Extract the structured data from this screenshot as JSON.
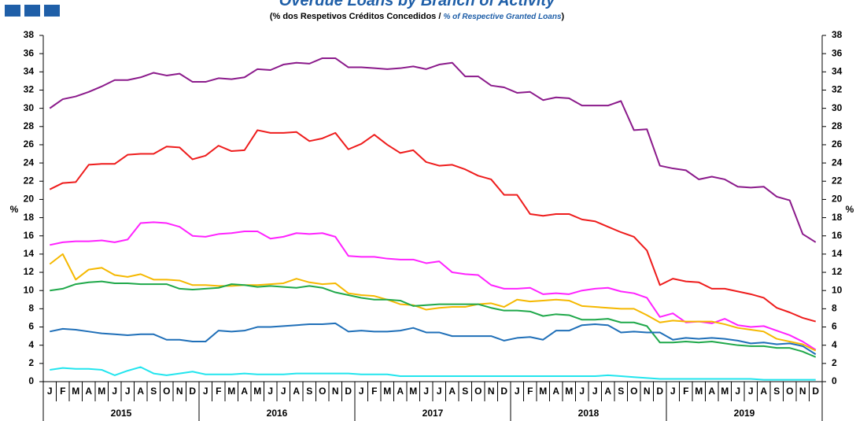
{
  "chart_data": {
    "type": "line",
    "title": "Overdue Loans by Branch of Activity",
    "subtitle_parts": [
      "(% dos Respetivos Créditos Concedidos / ",
      "% of Respective Granted Loans",
      ")"
    ],
    "ylabel": "%",
    "y2label": "%",
    "categories": [
      "J",
      "F",
      "M",
      "A",
      "M",
      "J",
      "J",
      "A",
      "S",
      "O",
      "N",
      "D",
      "J",
      "F",
      "M",
      "A",
      "M",
      "J",
      "J",
      "A",
      "S",
      "O",
      "N",
      "D",
      "J",
      "F",
      "M",
      "A",
      "M",
      "J",
      "J",
      "A",
      "S",
      "O",
      "N",
      "D",
      "J",
      "F",
      "M",
      "A",
      "M",
      "J",
      "J",
      "A",
      "S",
      "O",
      "N",
      "D",
      "J",
      "F",
      "M",
      "A",
      "M",
      "J",
      "J",
      "A",
      "S",
      "O",
      "N",
      "D"
    ],
    "year_labels": [
      "2015",
      "2016",
      "2017",
      "2018",
      "2019"
    ],
    "ylim": [
      0,
      38
    ],
    "yticks": [
      0,
      2,
      4,
      6,
      8,
      10,
      12,
      14,
      16,
      18,
      20,
      22,
      24,
      26,
      28,
      30,
      32,
      34,
      36,
      38
    ],
    "y2lim": [
      0,
      38
    ],
    "y2ticks": [
      0,
      2,
      4,
      6,
      8,
      10,
      12,
      14,
      16,
      18,
      20,
      22,
      24,
      26,
      28,
      30,
      32,
      34,
      36,
      38
    ],
    "grid": false,
    "series": [
      {
        "color": "#8b1a8b",
        "values": [
          30.0,
          31.0,
          31.3,
          31.8,
          32.4,
          33.1,
          33.1,
          33.4,
          33.9,
          33.6,
          33.8,
          32.9,
          32.9,
          33.3,
          33.2,
          33.4,
          34.3,
          34.2,
          34.8,
          35.0,
          34.9,
          35.5,
          35.5,
          34.5,
          34.5,
          34.4,
          34.3,
          34.4,
          34.6,
          34.3,
          34.8,
          35.0,
          33.5,
          33.5,
          32.5,
          32.3,
          31.7,
          31.8,
          30.9,
          31.2,
          31.1,
          30.3,
          30.3,
          30.3,
          30.8,
          27.6,
          27.7,
          23.7,
          23.4,
          23.2,
          22.2,
          22.5,
          22.2,
          21.4,
          21.3,
          21.4,
          20.3,
          19.9,
          16.2,
          15.3
        ]
      },
      {
        "color": "#ee1c1c",
        "values": [
          21.1,
          21.8,
          21.9,
          23.8,
          23.9,
          23.9,
          24.9,
          25.0,
          25.0,
          25.8,
          25.7,
          24.4,
          24.8,
          25.9,
          25.3,
          25.4,
          27.6,
          27.3,
          27.3,
          27.4,
          26.4,
          26.7,
          27.3,
          25.5,
          26.1,
          27.1,
          26.0,
          25.1,
          25.4,
          24.1,
          23.7,
          23.8,
          23.3,
          22.6,
          22.2,
          20.5,
          20.5,
          18.4,
          18.2,
          18.4,
          18.4,
          17.8,
          17.6,
          17.0,
          16.4,
          15.9,
          14.4,
          10.6,
          11.3,
          11.0,
          10.9,
          10.2,
          10.2,
          9.9,
          9.6,
          9.2,
          8.1,
          7.6,
          7.0,
          6.6
        ]
      },
      {
        "color": "#ff22ff",
        "values": [
          15.0,
          15.3,
          15.4,
          15.4,
          15.5,
          15.3,
          15.6,
          17.4,
          17.5,
          17.4,
          17.0,
          16.0,
          15.9,
          16.2,
          16.3,
          16.5,
          16.5,
          15.7,
          15.9,
          16.3,
          16.2,
          16.3,
          15.9,
          13.8,
          13.7,
          13.7,
          13.5,
          13.4,
          13.4,
          13.0,
          13.2,
          12.0,
          11.8,
          11.7,
          10.6,
          10.2,
          10.2,
          10.3,
          9.6,
          9.7,
          9.6,
          10.0,
          10.2,
          10.3,
          9.9,
          9.7,
          9.2,
          7.1,
          7.5,
          6.5,
          6.6,
          6.4,
          6.9,
          6.2,
          6.0,
          6.1,
          5.6,
          5.1,
          4.4,
          3.5
        ]
      },
      {
        "color": "#f5b800",
        "values": [
          12.9,
          14.0,
          11.2,
          12.3,
          12.5,
          11.7,
          11.5,
          11.8,
          11.2,
          11.2,
          11.1,
          10.6,
          10.6,
          10.5,
          10.5,
          10.6,
          10.6,
          10.7,
          10.8,
          11.3,
          10.9,
          10.7,
          10.8,
          9.7,
          9.5,
          9.4,
          9.0,
          8.5,
          8.4,
          7.9,
          8.1,
          8.2,
          8.2,
          8.5,
          8.6,
          8.2,
          9.0,
          8.8,
          8.9,
          9.0,
          8.9,
          8.3,
          8.2,
          8.1,
          8.0,
          8.0,
          7.3,
          6.5,
          6.7,
          6.6,
          6.6,
          6.6,
          6.3,
          5.9,
          5.7,
          5.5,
          4.7,
          4.4,
          4.1,
          3.4
        ]
      },
      {
        "color": "#1fa84a",
        "values": [
          10.0,
          10.2,
          10.7,
          10.9,
          11.0,
          10.8,
          10.8,
          10.7,
          10.7,
          10.7,
          10.2,
          10.1,
          10.2,
          10.3,
          10.7,
          10.6,
          10.4,
          10.5,
          10.4,
          10.3,
          10.5,
          10.3,
          9.8,
          9.5,
          9.2,
          9.0,
          9.0,
          8.9,
          8.3,
          8.4,
          8.5,
          8.5,
          8.5,
          8.5,
          8.1,
          7.8,
          7.8,
          7.7,
          7.2,
          7.4,
          7.3,
          6.8,
          6.8,
          6.9,
          6.5,
          6.5,
          6.1,
          4.3,
          4.3,
          4.4,
          4.3,
          4.4,
          4.2,
          4.0,
          3.9,
          3.9,
          3.7,
          3.7,
          3.3,
          2.7
        ]
      },
      {
        "color": "#1f6fb8",
        "values": [
          5.5,
          5.8,
          5.7,
          5.5,
          5.3,
          5.2,
          5.1,
          5.2,
          5.2,
          4.6,
          4.6,
          4.4,
          4.4,
          5.6,
          5.5,
          5.6,
          6.0,
          6.0,
          6.1,
          6.2,
          6.3,
          6.3,
          6.4,
          5.5,
          5.6,
          5.5,
          5.5,
          5.6,
          5.9,
          5.4,
          5.4,
          5.0,
          5.0,
          5.0,
          5.0,
          4.5,
          4.8,
          4.9,
          4.6,
          5.6,
          5.6,
          6.2,
          6.3,
          6.2,
          5.4,
          5.5,
          5.4,
          5.4,
          4.6,
          4.8,
          4.7,
          4.8,
          4.7,
          4.5,
          4.2,
          4.3,
          4.1,
          4.2,
          3.9,
          3.0
        ]
      },
      {
        "color": "#22e5ee",
        "values": [
          1.3,
          1.5,
          1.4,
          1.4,
          1.3,
          0.7,
          1.2,
          1.6,
          0.9,
          0.7,
          0.9,
          1.1,
          0.8,
          0.8,
          0.8,
          0.9,
          0.8,
          0.8,
          0.8,
          0.9,
          0.9,
          0.9,
          0.9,
          0.9,
          0.8,
          0.8,
          0.8,
          0.6,
          0.6,
          0.6,
          0.6,
          0.6,
          0.6,
          0.6,
          0.6,
          0.6,
          0.6,
          0.6,
          0.6,
          0.6,
          0.6,
          0.6,
          0.6,
          0.7,
          0.6,
          0.5,
          0.4,
          0.3,
          0.3,
          0.3,
          0.3,
          0.3,
          0.3,
          0.3,
          0.3,
          0.2,
          0.2,
          0.2,
          0.2,
          0.2
        ]
      }
    ]
  }
}
